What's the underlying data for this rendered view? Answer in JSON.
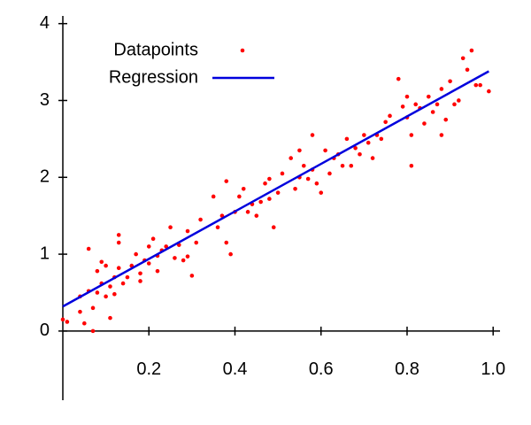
{
  "chart_data": {
    "type": "scatter",
    "xlim": [
      0,
      1.016
    ],
    "ylim": [
      -0.9,
      4.1
    ],
    "xticks": [
      0.2,
      0.4,
      0.6,
      0.8,
      {
        "value": 1,
        "label": "1.0"
      }
    ],
    "yticks": [
      0,
      1,
      2,
      3,
      4
    ],
    "legend": "upper left",
    "series": [
      {
        "name": "Datapoints",
        "color": "#ff0000",
        "mode": "markers",
        "x": [
          0.0,
          0.01,
          0.04,
          0.04,
          0.05,
          0.06,
          0.06,
          0.07,
          0.07,
          0.08,
          0.08,
          0.09,
          0.09,
          0.1,
          0.1,
          0.11,
          0.11,
          0.12,
          0.12,
          0.13,
          0.13,
          0.13,
          0.14,
          0.15,
          0.16,
          0.17,
          0.18,
          0.18,
          0.19,
          0.2,
          0.2,
          0.21,
          0.22,
          0.22,
          0.23,
          0.24,
          0.25,
          0.26,
          0.27,
          0.28,
          0.29,
          0.29,
          0.3,
          0.31,
          0.32,
          0.35,
          0.36,
          0.37,
          0.38,
          0.38,
          0.39,
          0.4,
          0.41,
          0.42,
          0.43,
          0.44,
          0.45,
          0.46,
          0.47,
          0.48,
          0.48,
          0.49,
          0.5,
          0.51,
          0.53,
          0.54,
          0.55,
          0.55,
          0.56,
          0.57,
          0.58,
          0.58,
          0.59,
          0.6,
          0.61,
          0.62,
          0.63,
          0.64,
          0.65,
          0.66,
          0.67,
          0.68,
          0.69,
          0.7,
          0.71,
          0.72,
          0.73,
          0.74,
          0.75,
          0.76,
          0.78,
          0.79,
          0.8,
          0.8,
          0.81,
          0.81,
          0.82,
          0.83,
          0.84,
          0.85,
          0.86,
          0.87,
          0.88,
          0.88,
          0.89,
          0.9,
          0.91,
          0.92,
          0.93,
          0.94,
          0.95,
          0.96,
          0.97,
          0.99
        ],
        "values": [
          0.15,
          0.12,
          0.45,
          0.25,
          0.1,
          1.07,
          0.52,
          0.3,
          0.0,
          0.78,
          0.5,
          0.9,
          0.62,
          0.85,
          0.45,
          0.17,
          0.58,
          0.7,
          0.48,
          1.25,
          1.15,
          0.82,
          0.62,
          0.7,
          0.85,
          1.0,
          0.65,
          0.75,
          0.92,
          1.1,
          0.88,
          1.2,
          0.98,
          0.78,
          1.05,
          1.1,
          1.35,
          0.95,
          1.12,
          0.92,
          1.3,
          0.97,
          0.72,
          1.15,
          1.45,
          1.75,
          1.35,
          1.5,
          1.95,
          1.15,
          1.0,
          1.55,
          1.75,
          1.85,
          1.55,
          1.65,
          1.5,
          1.68,
          1.92,
          1.72,
          1.98,
          1.35,
          1.8,
          2.05,
          2.25,
          1.85,
          2.35,
          2.0,
          2.15,
          1.98,
          2.55,
          2.1,
          1.92,
          1.8,
          2.35,
          2.05,
          2.25,
          2.3,
          2.15,
          2.5,
          2.15,
          2.38,
          2.3,
          2.55,
          2.45,
          2.25,
          2.55,
          2.5,
          2.72,
          2.8,
          3.28,
          2.92,
          3.05,
          2.78,
          2.55,
          2.15,
          2.95,
          2.9,
          2.7,
          3.05,
          2.85,
          2.95,
          2.55,
          3.15,
          2.75,
          3.25,
          2.95,
          3.0,
          3.55,
          3.4,
          3.65,
          3.2,
          3.2,
          3.12
        ]
      },
      {
        "name": "Regression",
        "color": "#0000dd",
        "mode": "line",
        "x": [
          0,
          0.99
        ],
        "values": [
          0.32,
          3.38
        ]
      }
    ]
  }
}
